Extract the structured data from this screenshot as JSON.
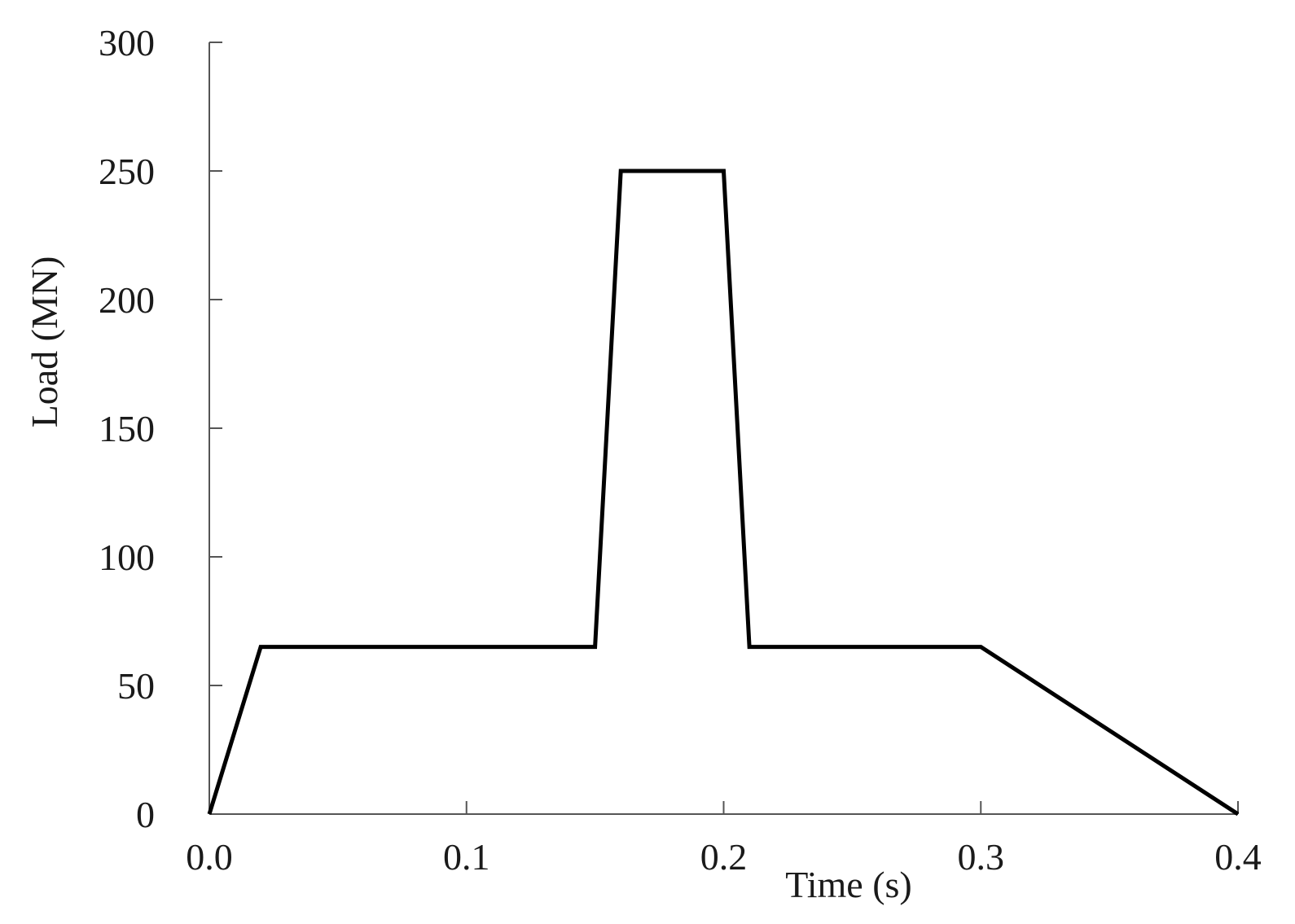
{
  "chart_data": {
    "type": "line",
    "title": "",
    "xlabel": "Time (s)",
    "ylabel": "Load (MN)",
    "xlim": [
      0,
      0.4
    ],
    "ylim": [
      0,
      300
    ],
    "x_ticks": [
      0,
      0.1,
      0.2,
      0.3,
      0.4
    ],
    "x_tick_labels": [
      "0.0",
      "0.1",
      "0.2",
      "0.3",
      "0.4"
    ],
    "y_ticks": [
      0,
      50,
      100,
      150,
      200,
      250,
      300
    ],
    "y_tick_labels": [
      "0",
      "50",
      "100",
      "150",
      "200",
      "250",
      "300"
    ],
    "grid": false,
    "legend": "none",
    "series": [
      {
        "color": "#000000",
        "x": [
          0,
          0.02,
          0.15,
          0.16,
          0.2,
          0.21,
          0.3,
          0.4
        ],
        "y": [
          0,
          65,
          65,
          250,
          250,
          65,
          65,
          0
        ]
      }
    ]
  }
}
